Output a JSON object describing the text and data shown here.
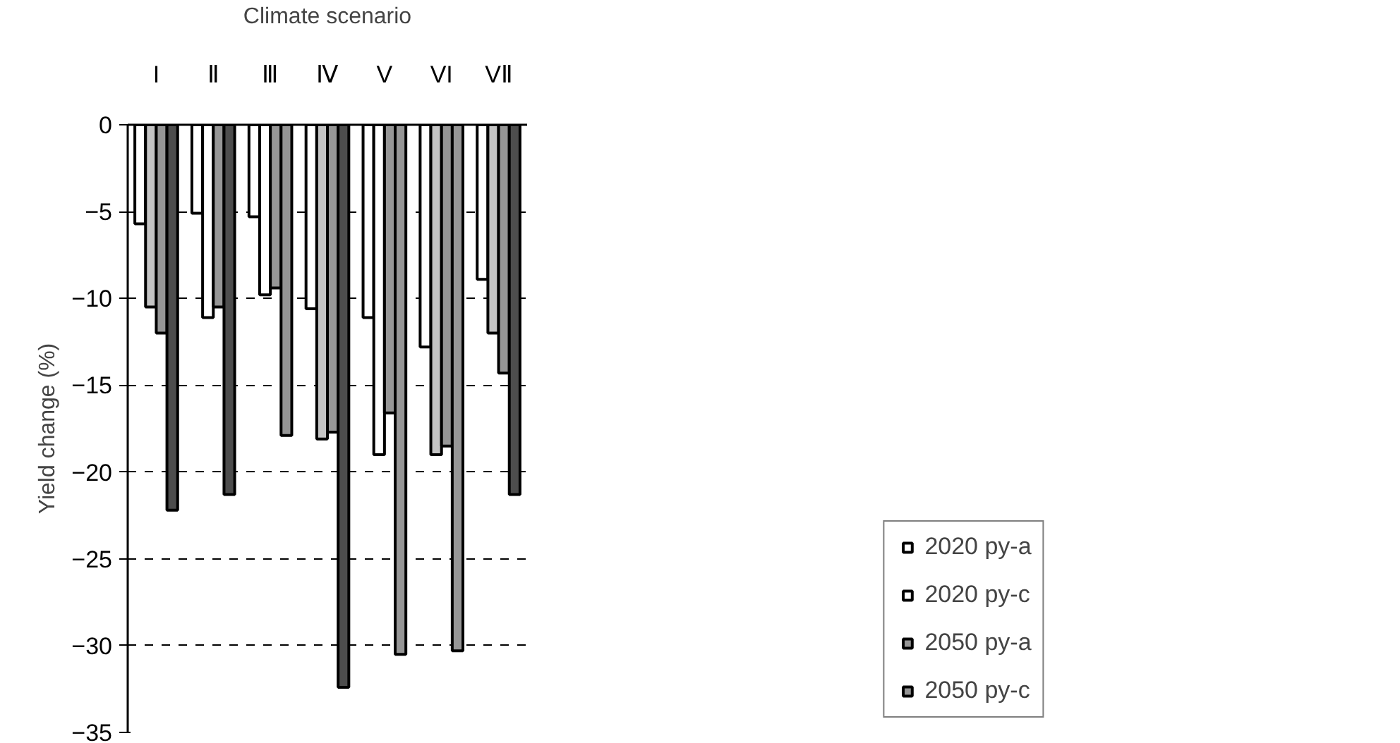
{
  "chart_data": {
    "type": "bar",
    "xlabel": "Climate scenario",
    "ylabel": "Yield change (%)",
    "categories": [
      "I",
      "Ⅱ",
      "Ⅲ",
      "Ⅳ",
      "V",
      "VI",
      "VⅡ"
    ],
    "series": [
      {
        "name": "2020 py-a",
        "color": "#ffffff",
        "values": [
          -5.7,
          -5.1,
          -5.3,
          -10.6,
          -11.1,
          -12.8,
          -8.9
        ]
      },
      {
        "name": "2020 py-c",
        "color": "#ffffff",
        "colors": [
          "#c4c4c4",
          "#ffffff",
          "#ffffff",
          "#c4c4c4",
          "#ffffff",
          "#c4c4c4",
          "#c4c4c4"
        ],
        "values": [
          -10.5,
          -11.1,
          -9.8,
          -18.1,
          -19.0,
          -19.0,
          -12.0
        ]
      },
      {
        "name": "2050 py-a",
        "color": "#969696",
        "values": [
          -12.0,
          -10.5,
          -9.4,
          -17.7,
          -16.6,
          -18.5,
          -14.3
        ]
      },
      {
        "name": "2050 py-c",
        "color": "#969696",
        "colors": [
          "#4d4d4d",
          "#4d4d4d",
          "#969696",
          "#4d4d4d",
          "#969696",
          "#969696",
          "#4d4d4d"
        ],
        "values": [
          -22.2,
          -21.3,
          -17.9,
          -32.4,
          -30.5,
          -30.3,
          -21.3
        ]
      }
    ],
    "ylim": [
      -35,
      0
    ],
    "yticks": [
      -35,
      -30,
      -25,
      -20,
      -15,
      -10,
      -5,
      0
    ],
    "grid": "y",
    "legend": "bottom right"
  }
}
